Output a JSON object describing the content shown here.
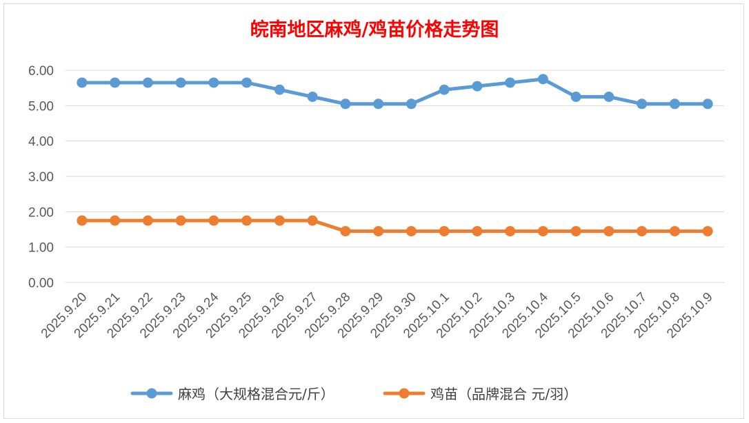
{
  "chart_data": {
    "type": "line",
    "title": "皖南地区麻鸡/鸡苗价格走势图",
    "categories": [
      "2025.9.20",
      "2025.9.21",
      "2025.9.22",
      "2025.9.23",
      "2025.9.24",
      "2025.9.25",
      "2025.9.26",
      "2025.9.27",
      "2025.9.28",
      "2025.9.29",
      "2025.9.30",
      "2025.10.1",
      "2025.10.2",
      "2025.10.3",
      "2025.10.4",
      "2025.10.5",
      "2025.10.6",
      "2025.10.7",
      "2025.10.8",
      "2025.10.9"
    ],
    "series": [
      {
        "name": "麻鸡（大规格混合元/斤）",
        "color": "#5b9bd5",
        "values": [
          5.65,
          5.65,
          5.65,
          5.65,
          5.65,
          5.65,
          5.45,
          5.25,
          5.05,
          5.05,
          5.05,
          5.45,
          5.55,
          5.65,
          5.75,
          5.25,
          5.25,
          5.05,
          5.05,
          5.05
        ]
      },
      {
        "name": "鸡苗（品牌混合 元/羽）",
        "color": "#ed7d31",
        "values": [
          1.75,
          1.75,
          1.75,
          1.75,
          1.75,
          1.75,
          1.75,
          1.75,
          1.45,
          1.45,
          1.45,
          1.45,
          1.45,
          1.45,
          1.45,
          1.45,
          1.45,
          1.45,
          1.45,
          1.45
        ]
      }
    ],
    "y_ticks": [
      "0.00",
      "1.00",
      "2.00",
      "3.00",
      "4.00",
      "5.00",
      "6.00"
    ],
    "ylim": [
      0,
      6
    ],
    "grid": true,
    "legend_position": "bottom",
    "xlabel": "",
    "ylabel": ""
  }
}
